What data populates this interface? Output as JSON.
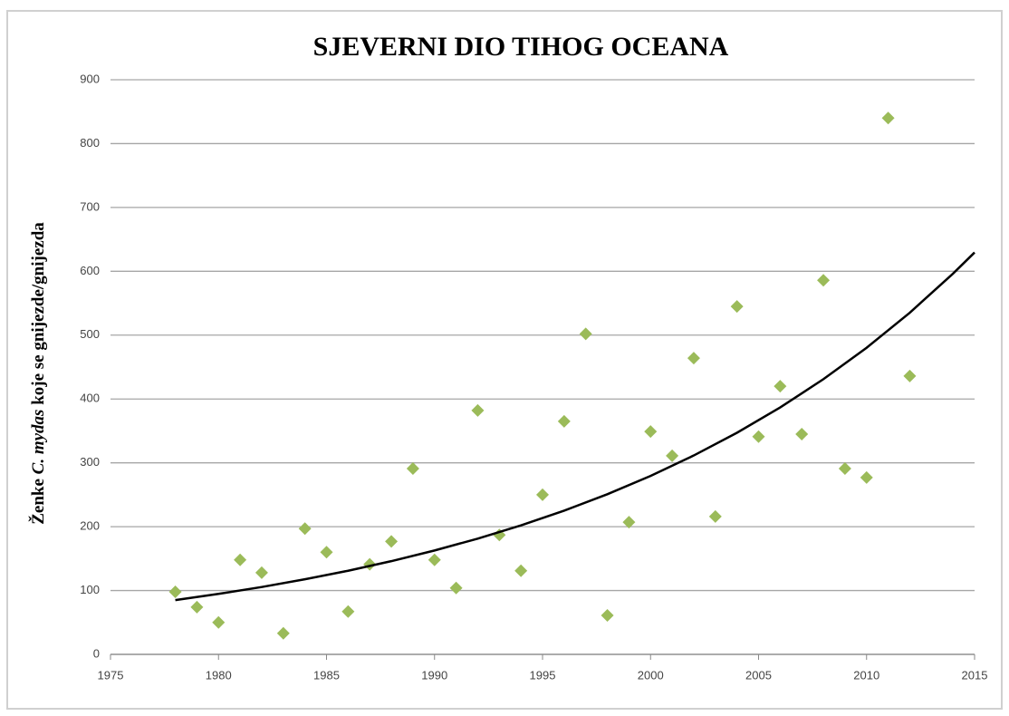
{
  "chart_data": {
    "type": "scatter",
    "title": "SJEVERNI DIO TIHOG OCEANA",
    "y_label": [
      "Ženke ",
      "C. mydas",
      " koje se gnijezde/gnijezda"
    ],
    "x": [
      1978,
      1979,
      1980,
      1981,
      1982,
      1983,
      1984,
      1985,
      1986,
      1987,
      1988,
      1989,
      1990,
      1991,
      1992,
      1993,
      1994,
      1995,
      1996,
      1997,
      1998,
      1999,
      2000,
      2001,
      2002,
      2003,
      2004,
      2005,
      2006,
      2007,
      2008,
      2009,
      2010,
      2011,
      2012
    ],
    "values": [
      98,
      74,
      50,
      148,
      128,
      33,
      197,
      160,
      67,
      141,
      177,
      291,
      148,
      104,
      382,
      187,
      131,
      250,
      365,
      502,
      61,
      207,
      349,
      311,
      464,
      216,
      545,
      341,
      420,
      345,
      586,
      291,
      277,
      840,
      436
    ],
    "color": "#9bbb59",
    "trendline": {
      "x": [
        1978,
        1980,
        1982,
        1984,
        1986,
        1988,
        1990,
        1992,
        1994,
        1996,
        1998,
        2000,
        2002,
        2004,
        2006,
        2008,
        2010,
        2012,
        2014,
        2015
      ],
      "values": [
        85,
        94.7,
        105.5,
        117.6,
        131.0,
        146.0,
        162.7,
        181.3,
        202.0,
        225.1,
        250.8,
        279.5,
        311.5,
        347.1,
        386.7,
        431.0,
        480.2,
        535.1,
        596.3,
        629.5
      ],
      "color": "#000000"
    },
    "xlim": [
      1975,
      2015
    ],
    "xticks": [
      1975,
      1980,
      1985,
      1990,
      1995,
      2000,
      2005,
      2010,
      2015
    ],
    "ylim": [
      0,
      900
    ],
    "yticks": [
      0,
      100,
      200,
      300,
      400,
      500,
      600,
      700,
      800,
      900
    ],
    "grid": true
  }
}
